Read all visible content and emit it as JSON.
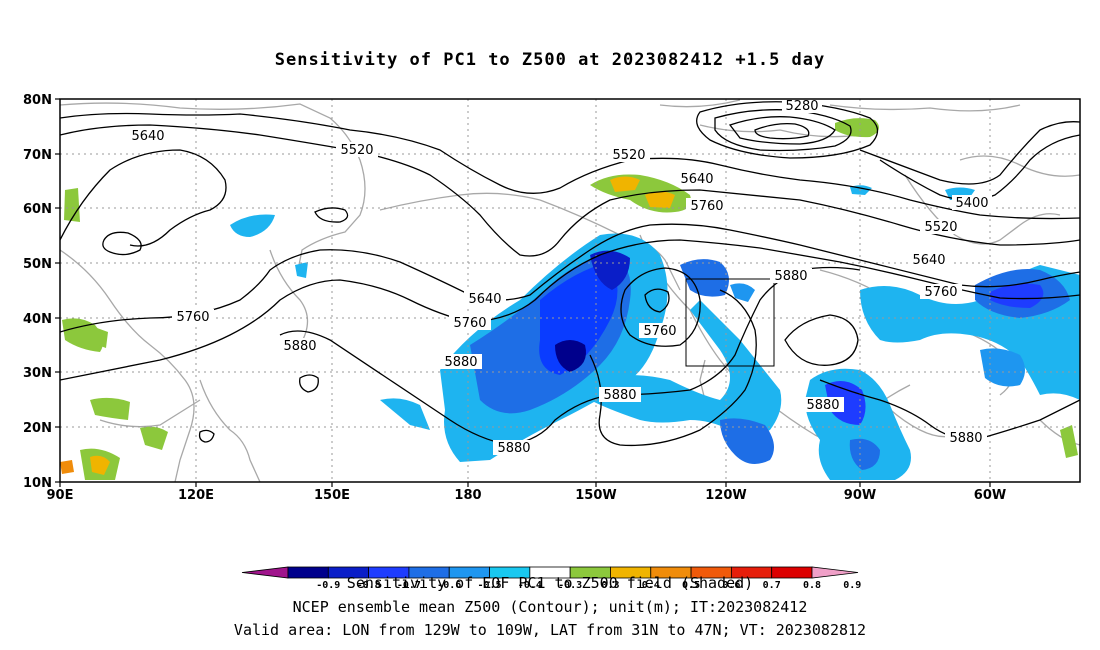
{
  "title": "Sensitivity of PC1 to Z500 at 2023082412 +1.5 day",
  "axes": {
    "lat_labels": [
      "80N",
      "70N",
      "60N",
      "50N",
      "40N",
      "30N",
      "20N",
      "10N"
    ],
    "lon_labels": [
      "90E",
      "120E",
      "150E",
      "180",
      "150W",
      "120W",
      "90W",
      "60W"
    ]
  },
  "contours": {
    "labels": [
      "5280",
      "5400",
      "5520",
      "5520",
      "5520",
      "5640",
      "5640",
      "5640",
      "5640",
      "5760",
      "5760",
      "5760",
      "5760",
      "5760",
      "5880",
      "5880",
      "5880",
      "5880",
      "5880",
      "5880",
      "5880"
    ]
  },
  "valid_box": {
    "lon": [
      "129W",
      "109W"
    ],
    "lat": [
      "31N",
      "47N"
    ]
  },
  "colorbar": {
    "labels": [
      "-0.9",
      "-0.8",
      "-0.7",
      "-0.6",
      "-0.5",
      "-0.4",
      "-0.3",
      "0.3",
      "0.4",
      "0.5",
      "0.6",
      "0.7",
      "0.8",
      "0.9"
    ],
    "colors": [
      "#a0148c",
      "#00008c",
      "#0a1ec8",
      "#1e3cff",
      "#1e6ee6",
      "#1e96f0",
      "#19c8f0",
      "#ffffff",
      "#8cc83c",
      "#f0b400",
      "#f08c0a",
      "#f05a0a",
      "#e61e0a",
      "#dc0000",
      "#f0a0c8"
    ]
  },
  "caption": {
    "line1": "Sensitivity of EOF PC1 to Z500 field (Shaded)",
    "line2": "NCEP ensemble mean Z500 (Contour); unit(m); IT:2023082412",
    "line3": "Valid area: LON from 129W to 109W, LAT from 31N to 47N; VT: 2023082812"
  }
}
